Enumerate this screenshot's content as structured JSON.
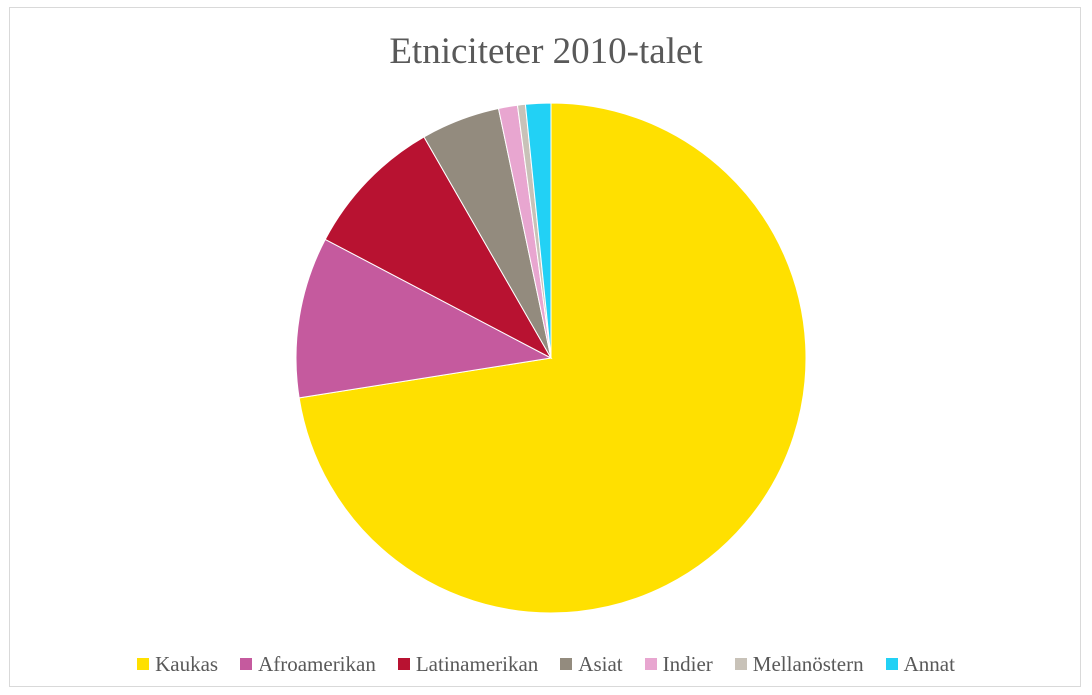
{
  "chart_data": {
    "type": "pie",
    "title": "Etniciteter 2010-talet",
    "legend_position": "bottom",
    "slices": [
      {
        "label": "Kaukas",
        "value": 72.5,
        "color": "#FFE000"
      },
      {
        "label": "Afroamerikan",
        "value": 10.2,
        "color": "#C55A9E"
      },
      {
        "label": "Latinamerikan",
        "value": 9.0,
        "color": "#B81231"
      },
      {
        "label": "Asiat",
        "value": 5.0,
        "color": "#938B7E"
      },
      {
        "label": "Indier",
        "value": 1.2,
        "color": "#E8A6D0"
      },
      {
        "label": "Mellanöstern",
        "value": 0.5,
        "color": "#C8C2B8"
      },
      {
        "label": "Annat",
        "value": 1.6,
        "color": "#22D1F5"
      }
    ]
  }
}
